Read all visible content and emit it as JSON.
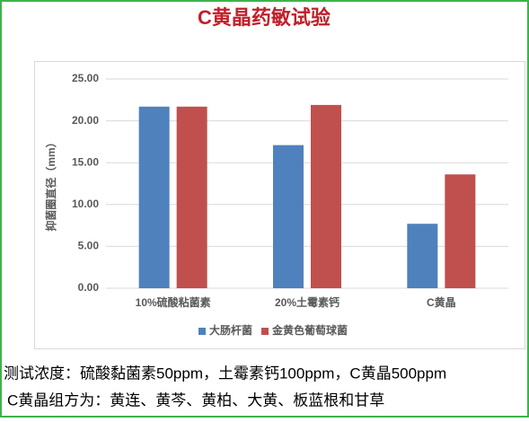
{
  "chart_data": {
    "type": "bar",
    "title": "C黄晶药敏试验",
    "y_label": "抑菌圈直径（mm）",
    "categories": [
      "10%硫酸粘菌素",
      "20%土霉素钙",
      "C黄晶"
    ],
    "series": [
      {
        "name": "大肠杆菌",
        "color": "#4f81bd",
        "values": [
          21.7,
          17.1,
          7.7
        ]
      },
      {
        "name": "金黄色葡萄球菌",
        "color": "#c0504d",
        "values": [
          21.7,
          21.9,
          13.6
        ]
      }
    ],
    "ylim": [
      0,
      25
    ],
    "yticks": [
      {
        "value": 0,
        "label": "0.00"
      },
      {
        "value": 5,
        "label": "5.00"
      },
      {
        "value": 10,
        "label": "10.00"
      },
      {
        "value": 15,
        "label": "15.00"
      },
      {
        "value": 20,
        "label": "20.00"
      },
      {
        "value": 25,
        "label": "25.00"
      }
    ],
    "grid": true,
    "legend": "bottom"
  },
  "notes": [
    "测试浓度：硫酸黏菌素50ppm，土霉素钙100ppm，C黄晶500ppm",
    "C黄晶组方为：黄连、黄芩、黄柏、大黄、板蓝根和甘草"
  ]
}
